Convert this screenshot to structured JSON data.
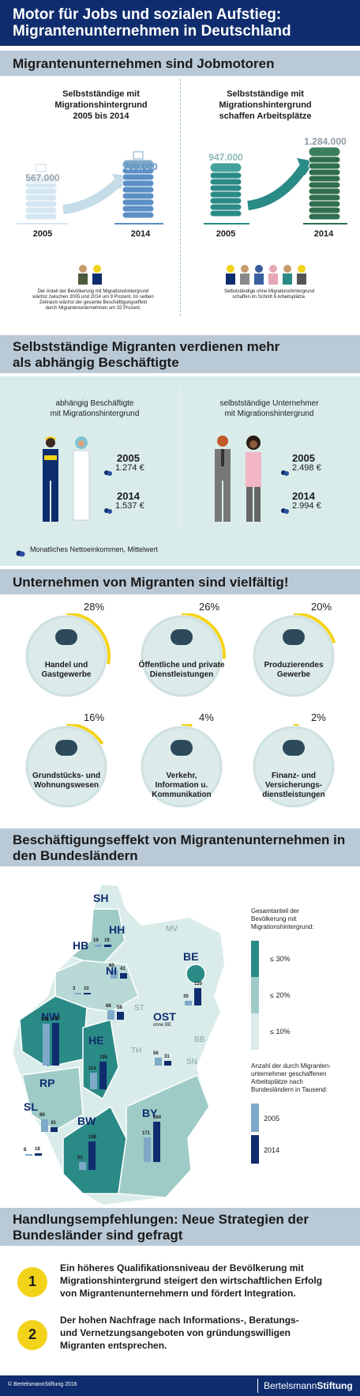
{
  "header": {
    "title_line1": "Motor für Jobs und sozialen Aufstieg:",
    "title_line2": "Migrantenunternehmen in Deutschland"
  },
  "section1": {
    "title": "Migrantenunternehmen sind Jobmotoren",
    "left_title": [
      "Selbstständige mit",
      "Migrationshintergrund",
      "2005 bis 2014"
    ],
    "right_title": [
      "Selbstständige mit",
      "Migrationshintergrund",
      "schaffen Arbeitsplätze"
    ],
    "left_values": {
      "v2005": "567.000",
      "v2014": "709.000"
    },
    "right_values": {
      "v2005": "947.000",
      "v2014": "1.284.000"
    },
    "years": {
      "y1": "2005",
      "y2": "2014"
    },
    "left_note": [
      "Der Anteil der Bevölkerung mit Migrationshintergrund",
      "wächst zwischen 2005 und 2014 um 9 Prozent. Im selben",
      "Zeitraum wächst der gesamte Beschäftigungseffekt",
      "durch Migrantenunternehmen um 32 Prozent."
    ],
    "right_note": [
      "Selbstständige ohne Migrationshintergrund",
      "schaffen im Schnitt 6 Arbeitsplätze."
    ]
  },
  "section2": {
    "title_line1": "Selbstständige Migranten verdienen mehr",
    "title_line2": "als abhängig Beschäftigte",
    "left_title": [
      "abhängig Beschäftigte",
      "mit Migrationshintergrund"
    ],
    "right_title": [
      "selbstständige Unternehmer",
      "mit Migrationshintergrund"
    ],
    "left": {
      "y1": "2005",
      "v1": "1.274 €",
      "y2": "2014",
      "v2": "1.537 €"
    },
    "right": {
      "y1": "2005",
      "v1": "2.498 €",
      "y2": "2014",
      "v2": "2.994 €"
    },
    "legend": "Monatliches Nettoeinkommen, Mittelwert"
  },
  "section3": {
    "title": "Unternehmen von Migranten sind vielfältig!",
    "sectors": [
      {
        "pct": "28%",
        "label1": "Handel und",
        "label2": "Gastgewerbe",
        "label3": "",
        "fraction": 0.28,
        "icon": "cloche-icon"
      },
      {
        "pct": "26%",
        "label1": "Öffentliche und private",
        "label2": "Dienstleistungen",
        "label3": "",
        "fraction": 0.26,
        "icon": "tools-icon"
      },
      {
        "pct": "20%",
        "label1": "Produzierendes",
        "label2": "Gewerbe",
        "label3": "",
        "fraction": 0.2,
        "icon": "hardhat-icon"
      },
      {
        "pct": "16%",
        "label1": "Grundstücks- und",
        "label2": "Wohnungswesen",
        "label3": "",
        "fraction": 0.16,
        "icon": "house-key-icon"
      },
      {
        "pct": "4%",
        "label1": "Verkehr,",
        "label2": "Information u.",
        "label3": "Kommunikation",
        "fraction": 0.04,
        "icon": "network-icon"
      },
      {
        "pct": "2%",
        "label1": "Finanz- und",
        "label2": "Versicherungs-",
        "label3": "dienstleistungen",
        "fraction": 0.02,
        "icon": "piggybank-icon"
      }
    ]
  },
  "section4": {
    "title_line1": "Beschäftigungseffekt von Migrantenunternehmen in",
    "title_line2": "den Bundesländern",
    "legend_share_title": [
      "Gesamtanteil der",
      "Bevölkerung mit",
      "Migrationshintergrund:"
    ],
    "legend_share": [
      "≤ 30%",
      "≤ 20%",
      "≤ 10%"
    ],
    "legend_jobs_title": [
      "Anzahl der durch Migranten-",
      "unternehmer geschaffenen",
      "Arbeitsplätze nach",
      "Bundesländern in Tausend:"
    ],
    "legend_jobs": [
      "2005",
      "2014"
    ],
    "ost_note": "ohne BE",
    "unlabeled_regions": [
      "MV",
      "ST",
      "BB",
      "TH",
      "SN"
    ],
    "states": [
      {
        "code": "SH",
        "v2005": "19",
        "v2014": "19"
      },
      {
        "code": "HH",
        "v2005": "60",
        "v2014": "41"
      },
      {
        "code": "HB",
        "v2005": "3",
        "v2014": "10"
      },
      {
        "code": "NI",
        "v2005": "68",
        "v2014": "58"
      },
      {
        "code": "BE",
        "v2005": "35",
        "v2014": "120"
      },
      {
        "code": "NW",
        "v2005": "296",
        "v2014": "300"
      },
      {
        "code": "OST",
        "v2005": "56",
        "v2014": "31"
      },
      {
        "code": "HE",
        "v2005": "114",
        "v2014": "195"
      },
      {
        "code": "RP",
        "v2005": "89",
        "v2014": "35"
      },
      {
        "code": "SL",
        "v2005": "8",
        "v2014": "18"
      },
      {
        "code": "BW",
        "v2005": "53",
        "v2014": "198"
      },
      {
        "code": "BY",
        "v2005": "171",
        "v2014": "284"
      }
    ]
  },
  "section5": {
    "title_line1": "Handlungsempfehlungen: Neue Strategien der",
    "title_line2": "Bundesländer sind gefragt",
    "items": [
      {
        "num": "1",
        "lines": [
          "Ein höheres Qualifikationsniveau der Bevölkerung mit",
          "Migrationshintergrund steigert den wirtschaftlichen Erfolg",
          "von Migrantenunternehmern und fördert Integration."
        ]
      },
      {
        "num": "2",
        "lines": [
          "Der hohen Nachfrage nach Informations-, Beratungs-",
          "und Vernetzungsangeboten von gründungswilligen",
          "Migranten entsprechen."
        ]
      }
    ]
  },
  "footer": {
    "copyright": "© BertelsmannStiftung 2016",
    "brand_a": "Bertelsmann",
    "brand_b": "Stiftung"
  },
  "colors": {
    "navy": "#0f2d6e",
    "teal": "#2a8a86",
    "lightblue": "#7fa9c8",
    "yellow": "#f3d31a",
    "band": "#b9c9d6",
    "mint": "#d9ecea"
  }
}
